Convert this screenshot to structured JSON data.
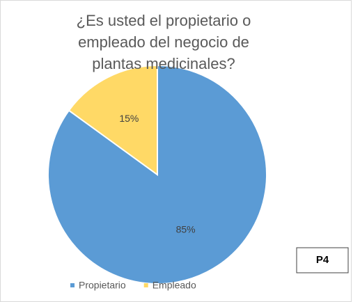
{
  "chart_data": {
    "type": "pie",
    "title": "¿Es usted el propietario o empleado del negocio de plantas medicinales?",
    "categories": [
      "Propietario",
      "Empleado"
    ],
    "values": [
      85,
      15
    ],
    "value_labels": [
      "85%",
      "15%"
    ],
    "colors": [
      "#5b9bd5",
      "#ffd966"
    ],
    "annotation": "P4",
    "legend": "bottom"
  }
}
